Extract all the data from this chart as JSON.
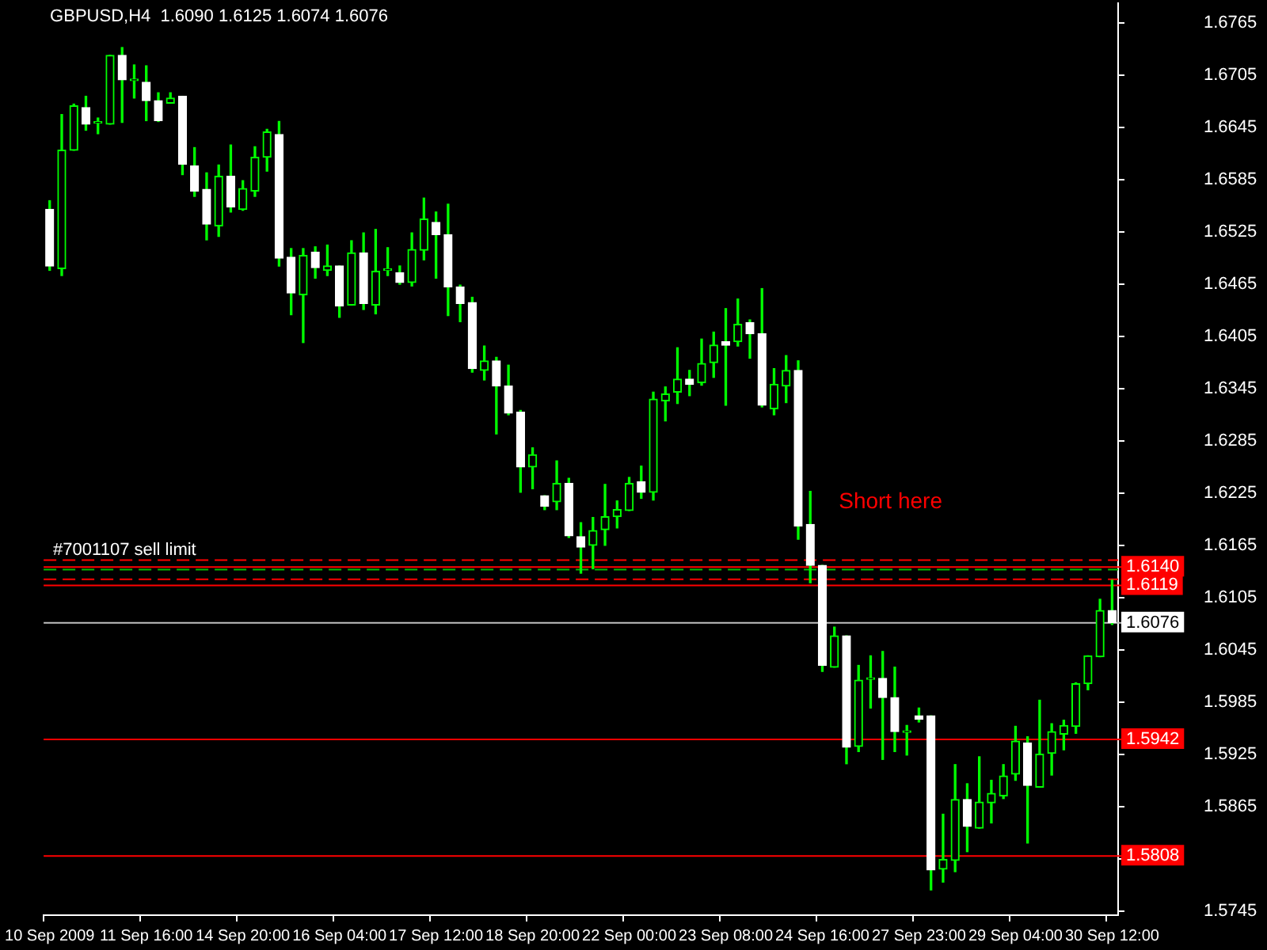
{
  "chart_data": {
    "type": "candlestick",
    "title": "GBPUSD,H4  1.6090 1.6125 1.6074 1.6076",
    "color": "#00ff00",
    "categories": [
      "10 Sep 2009",
      null,
      null,
      null,
      null,
      null,
      null,
      null,
      "11 Sep 16:00",
      null,
      null,
      null,
      null,
      null,
      null,
      null,
      "14 Sep 20:00",
      null,
      null,
      null,
      null,
      null,
      null,
      null,
      "16 Sep 04:00",
      null,
      null,
      null,
      null,
      null,
      null,
      null,
      "17 Sep 12:00",
      null,
      null,
      null,
      null,
      null,
      null,
      null,
      "18 Sep 20:00",
      null,
      null,
      null,
      null,
      null,
      null,
      null,
      "22 Sep 00:00",
      null,
      null,
      null,
      null,
      null,
      null,
      null,
      "23 Sep 08:00",
      null,
      null,
      null,
      null,
      null,
      null,
      null,
      "24 Sep 16:00",
      null,
      null,
      null,
      null,
      null,
      null,
      null,
      "27 Sep 23:00",
      null,
      null,
      null,
      null,
      null,
      null,
      null,
      "29 Sep 04:00",
      null,
      null,
      null,
      null,
      null,
      null,
      null,
      "30 Sep 12:00"
    ],
    "ohlc": [
      [
        1.6551,
        1.6561,
        1.6481,
        1.6486
      ],
      [
        1.6483,
        1.666,
        1.6475,
        1.6619
      ],
      [
        1.6619,
        1.6672,
        1.6619,
        1.667
      ],
      [
        1.6668,
        1.6681,
        1.6642,
        1.6649
      ],
      [
        1.665,
        1.6656,
        1.6638,
        1.665
      ],
      [
        1.6649,
        1.6728,
        1.6649,
        1.6728
      ],
      [
        1.6728,
        1.6737,
        1.6651,
        1.67
      ],
      [
        1.6699,
        1.6717,
        1.6679,
        1.6699
      ],
      [
        1.6697,
        1.6716,
        1.6653,
        1.6676
      ],
      [
        1.6676,
        1.6685,
        1.6652,
        1.6653
      ],
      [
        1.6673,
        1.6685,
        1.6673,
        1.6679
      ],
      [
        1.6681,
        1.6681,
        1.6591,
        1.6603
      ],
      [
        1.6601,
        1.6622,
        1.6566,
        1.6572
      ],
      [
        1.6574,
        1.6593,
        1.6516,
        1.6534
      ],
      [
        1.6532,
        1.6602,
        1.652,
        1.6589
      ],
      [
        1.6589,
        1.6625,
        1.6548,
        1.6554
      ],
      [
        1.6551,
        1.6584,
        1.655,
        1.6575
      ],
      [
        1.6572,
        1.6623,
        1.6566,
        1.6611
      ],
      [
        1.6611,
        1.6643,
        1.6595,
        1.664
      ],
      [
        1.6637,
        1.6652,
        1.6486,
        1.6495
      ],
      [
        1.6496,
        1.6506,
        1.643,
        1.6455
      ],
      [
        1.6453,
        1.6506,
        1.6398,
        1.6498
      ],
      [
        1.6502,
        1.6508,
        1.6472,
        1.6484
      ],
      [
        1.6481,
        1.651,
        1.6475,
        1.6486
      ],
      [
        1.6486,
        1.6486,
        1.6427,
        1.644
      ],
      [
        1.6441,
        1.6515,
        1.6441,
        1.6501
      ],
      [
        1.6501,
        1.6524,
        1.6436,
        1.6443
      ],
      [
        1.6441,
        1.6528,
        1.6431,
        1.648
      ],
      [
        1.6481,
        1.6507,
        1.6475,
        1.6481
      ],
      [
        1.6478,
        1.6486,
        1.6465,
        1.6467
      ],
      [
        1.6467,
        1.6524,
        1.6463,
        1.6505
      ],
      [
        1.6504,
        1.6564,
        1.6493,
        1.654
      ],
      [
        1.6536,
        1.6548,
        1.6472,
        1.6522
      ],
      [
        1.6522,
        1.6557,
        1.6429,
        1.6462
      ],
      [
        1.6462,
        1.6464,
        1.6422,
        1.6443
      ],
      [
        1.6444,
        1.645,
        1.6364,
        1.6368
      ],
      [
        1.6366,
        1.6394,
        1.6355,
        1.6377
      ],
      [
        1.6377,
        1.6381,
        1.6293,
        1.6348
      ],
      [
        1.6348,
        1.6372,
        1.6315,
        1.6317
      ],
      [
        1.6318,
        1.632,
        1.6226,
        1.6255
      ],
      [
        1.6255,
        1.6277,
        1.623,
        1.6269
      ],
      [
        1.6222,
        1.6222,
        1.6206,
        1.621
      ],
      [
        1.6215,
        1.6262,
        1.6206,
        1.6236
      ],
      [
        1.6236,
        1.6242,
        1.6174,
        1.6176
      ],
      [
        1.6175,
        1.6191,
        1.6133,
        1.6163
      ],
      [
        1.6165,
        1.6197,
        1.6138,
        1.6182
      ],
      [
        1.6183,
        1.6235,
        1.6165,
        1.6198
      ],
      [
        1.6198,
        1.6216,
        1.6185,
        1.6206
      ],
      [
        1.6205,
        1.6243,
        1.6205,
        1.6236
      ],
      [
        1.6238,
        1.6256,
        1.6219,
        1.6226
      ],
      [
        1.6226,
        1.6341,
        1.6217,
        1.6333
      ],
      [
        1.6331,
        1.6347,
        1.6308,
        1.6339
      ],
      [
        1.6341,
        1.6392,
        1.6328,
        1.6356
      ],
      [
        1.6356,
        1.6366,
        1.6337,
        1.635
      ],
      [
        1.6352,
        1.6402,
        1.6349,
        1.6374
      ],
      [
        1.6375,
        1.641,
        1.6358,
        1.6395
      ],
      [
        1.6399,
        1.6437,
        1.6326,
        1.6395
      ],
      [
        1.6399,
        1.6448,
        1.6394,
        1.6419
      ],
      [
        1.6421,
        1.6424,
        1.638,
        1.6408
      ],
      [
        1.6408,
        1.646,
        1.6324,
        1.6326
      ],
      [
        1.6322,
        1.6368,
        1.6315,
        1.635
      ],
      [
        1.6348,
        1.6383,
        1.6329,
        1.6366
      ],
      [
        1.6366,
        1.6377,
        1.6172,
        1.6187
      ],
      [
        1.6189,
        1.6227,
        1.6122,
        1.6142
      ],
      [
        1.6142,
        1.6142,
        1.602,
        1.6027
      ],
      [
        1.6025,
        1.6071,
        1.6025,
        1.6061
      ],
      [
        1.6061,
        1.6061,
        1.5914,
        1.5933
      ],
      [
        1.5934,
        1.6027,
        1.5928,
        1.601
      ],
      [
        1.6011,
        1.6038,
        1.5978,
        1.6011
      ],
      [
        1.6012,
        1.6043,
        1.5919,
        1.599
      ],
      [
        1.599,
        1.6025,
        1.5928,
        1.5951
      ],
      [
        1.595,
        1.5958,
        1.5924,
        1.595
      ],
      [
        1.5969,
        1.5978,
        1.5962,
        1.5965
      ],
      [
        1.5969,
        1.5969,
        1.5769,
        1.5792
      ],
      [
        1.5793,
        1.5856,
        1.5778,
        1.5804
      ],
      [
        1.5803,
        1.5913,
        1.579,
        1.5873
      ],
      [
        1.5873,
        1.5891,
        1.5813,
        1.5842
      ],
      [
        1.584,
        1.5922,
        1.584,
        1.587
      ],
      [
        1.5869,
        1.5895,
        1.5846,
        1.588
      ],
      [
        1.5877,
        1.5913,
        1.5874,
        1.59
      ],
      [
        1.5902,
        1.5957,
        1.5895,
        1.594
      ],
      [
        1.5938,
        1.5945,
        1.5823,
        1.5889
      ],
      [
        1.5887,
        1.5987,
        1.5887,
        1.5925
      ],
      [
        1.5926,
        1.596,
        1.5901,
        1.5951
      ],
      [
        1.5948,
        1.5964,
        1.593,
        1.5958
      ],
      [
        1.5957,
        1.6007,
        1.5949,
        1.6006
      ],
      [
        1.6006,
        1.6038,
        1.5999,
        1.6038
      ],
      [
        1.6037,
        1.6103,
        1.6037,
        1.609
      ],
      [
        1.609,
        1.6125,
        1.6074,
        1.6076
      ]
    ],
    "colors": [
      "#ffffff",
      "#00ff00",
      "#00ff00",
      "#ffffff",
      "#00ff00",
      "#00ff00",
      "#ffffff",
      "#00ff00",
      "#ffffff",
      "#ffffff",
      "#00ff00",
      "#ffffff",
      "#ffffff",
      "#ffffff",
      "#00ff00",
      "#ffffff",
      "#00ff00",
      "#00ff00",
      "#00ff00",
      "#ffffff",
      "#ffffff",
      "#00ff00",
      "#ffffff",
      "#00ff00",
      "#ffffff",
      "#00ff00",
      "#ffffff",
      "#00ff00",
      "#00ff00",
      "#ffffff",
      "#00ff00",
      "#00ff00",
      "#ffffff",
      "#ffffff",
      "#ffffff",
      "#ffffff",
      "#00ff00",
      "#ffffff",
      "#ffffff",
      "#ffffff",
      "#00ff00",
      "#ffffff",
      "#00ff00",
      "#ffffff",
      "#ffffff",
      "#00ff00",
      "#00ff00",
      "#00ff00",
      "#00ff00",
      "#ffffff",
      "#00ff00",
      "#00ff00",
      "#00ff00",
      "#ffffff",
      "#00ff00",
      "#00ff00",
      "#ffffff",
      "#00ff00",
      "#ffffff",
      "#ffffff",
      "#00ff00",
      "#00ff00",
      "#ffffff",
      "#ffffff",
      "#ffffff",
      "#00ff00",
      "#ffffff",
      "#00ff00",
      "#00ff00",
      "#ffffff",
      "#ffffff",
      "#00ff00",
      "#ffffff",
      "#ffffff",
      "#00ff00",
      "#00ff00",
      "#ffffff",
      "#00ff00",
      "#00ff00",
      "#00ff00",
      "#00ff00",
      "#ffffff",
      "#00ff00",
      "#00ff00",
      "#00ff00",
      "#00ff00",
      "#00ff00",
      "#00ff00",
      "#ffffff"
    ],
    "ylim": [
      1.574,
      1.6788
    ],
    "yticks": [
      1.6765,
      1.6705,
      1.6645,
      1.6585,
      1.6525,
      1.6465,
      1.6405,
      1.6345,
      1.6285,
      1.6225,
      1.6165,
      1.6105,
      1.6045,
      1.5985,
      1.5925,
      1.5865,
      {
        "value": 1.5805,
        "label": null
      },
      1.5745
    ],
    "ref_lines": [
      {
        "axis": "y",
        "value": 1.6148,
        "color": "#ff0000",
        "line_style": "dashed"
      },
      {
        "axis": "y",
        "value": 1.614,
        "label": "1.6140",
        "color": "#ff0000",
        "line_style": "solid"
      },
      {
        "axis": "y",
        "value": 1.6137,
        "label": "#7001107 sell limit",
        "color": "#00c000",
        "line_style": "dashed"
      },
      {
        "axis": "y",
        "value": 1.6126,
        "color": "#ff0000",
        "line_style": "dashed"
      },
      {
        "axis": "y",
        "value": 1.6119,
        "label": "1.6119",
        "color": "#ff0000",
        "line_style": "solid"
      },
      {
        "axis": "y",
        "value": 1.6076,
        "label": "1.6076",
        "color": "#c0c0c0",
        "line_style": "solid"
      },
      {
        "axis": "y",
        "value": 1.5942,
        "label": "1.5942",
        "color": "#ff0000",
        "line_style": "solid"
      },
      {
        "axis": "y",
        "value": 1.5808,
        "label": "1.5808",
        "color": "#ff0000",
        "line_style": "solid"
      }
    ],
    "annotations": [
      "Short here"
    ],
    "grid": false,
    "legend": false
  }
}
